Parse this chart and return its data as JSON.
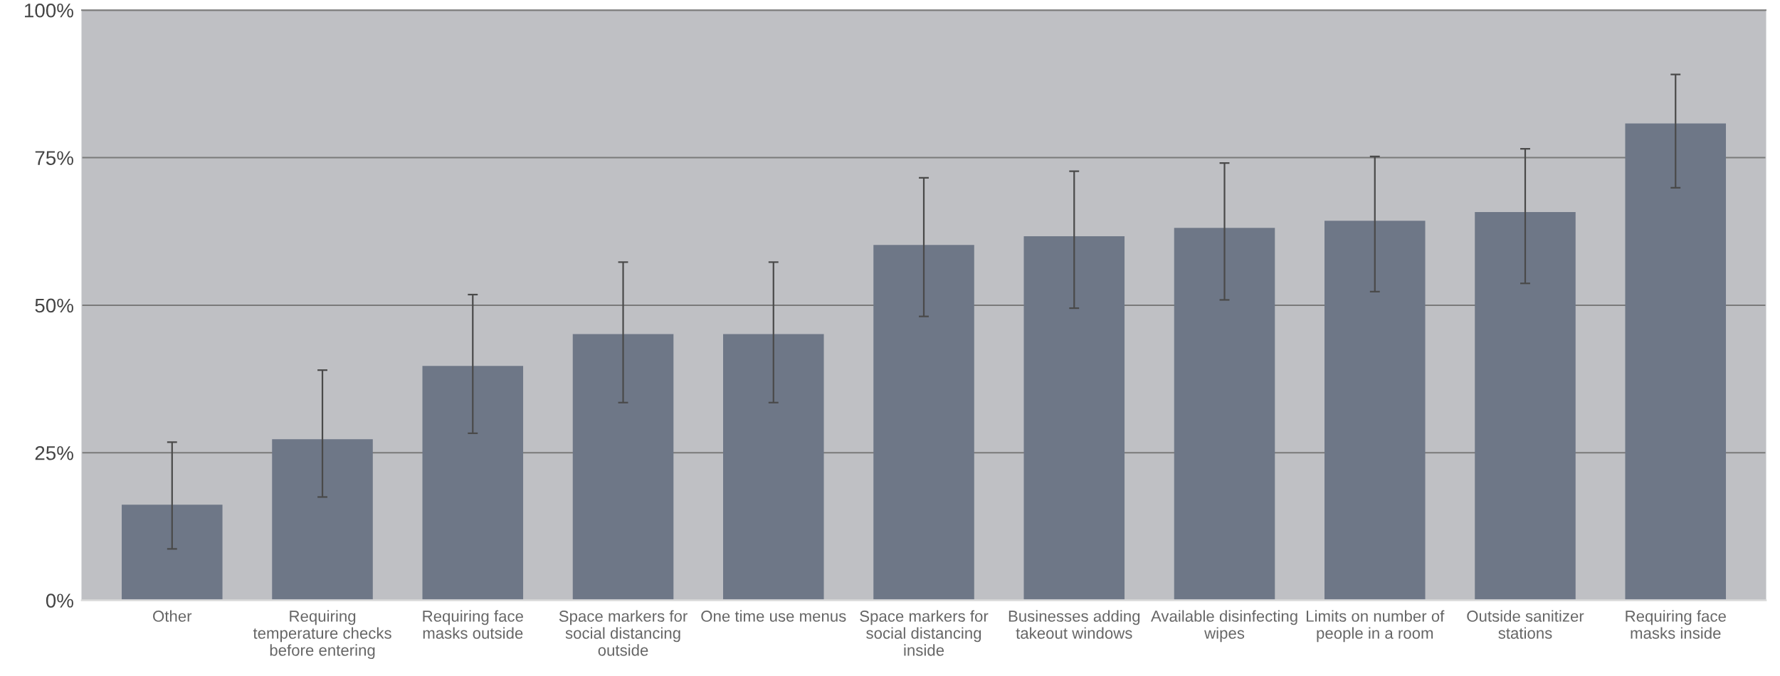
{
  "chart_data": {
    "type": "bar",
    "categories": [
      "Other",
      "Requiring\ntemperature checks\nbefore entering",
      "Requiring face\nmasks outside",
      "Space markers for\nsocial distancing\noutside",
      "One time use menus",
      "Space markers for\nsocial distancing\ninside",
      "Businesses adding\ntakeout windows",
      "Available disinfecting\nwipes",
      "Limits on number of\npeople in a room",
      "Outside sanitizer\nstations",
      "Requiring face\nmasks inside"
    ],
    "values": [
      16.2,
      27.3,
      39.7,
      45.1,
      45.1,
      60.2,
      61.7,
      63.1,
      64.3,
      65.8,
      80.8
    ],
    "errors": [
      [
        8.7,
        26.8
      ],
      [
        17.5,
        39.0
      ],
      [
        28.3,
        51.8
      ],
      [
        33.5,
        57.3
      ],
      [
        33.5,
        57.3
      ],
      [
        48.1,
        71.6
      ],
      [
        49.5,
        72.7
      ],
      [
        50.9,
        74.1
      ],
      [
        52.3,
        75.2
      ],
      [
        53.7,
        76.5
      ],
      [
        69.9,
        89.1
      ]
    ],
    "color": "#6e7787",
    "ylim": [
      0,
      100
    ],
    "yticks": [
      {
        "value": 0,
        "label": "0%"
      },
      {
        "value": 25,
        "label": "25%"
      },
      {
        "value": 50,
        "label": "50%"
      },
      {
        "value": 75,
        "label": "75%"
      },
      {
        "value": 100,
        "label": "100%"
      }
    ],
    "grid": "y"
  }
}
